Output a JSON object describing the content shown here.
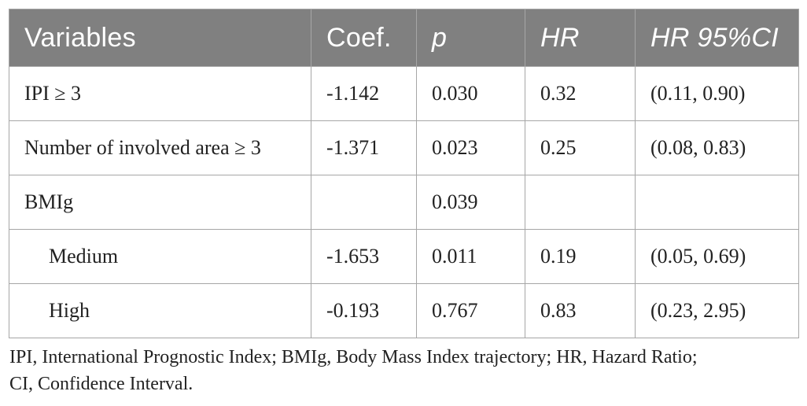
{
  "table": {
    "headers": [
      "Variables",
      "Coef.",
      "p",
      "HR",
      "HR 95%CI"
    ],
    "rows": [
      {
        "variable": "IPI ≥ 3",
        "coef": "-1.142",
        "p": "0.030",
        "hr": "0.32",
        "ci": "(0.11, 0.90)",
        "indent": false
      },
      {
        "variable": "Number of involved area ≥ 3",
        "coef": "-1.371",
        "p": "0.023",
        "hr": "0.25",
        "ci": "(0.08, 0.83)",
        "indent": false
      },
      {
        "variable": "BMIg",
        "coef": "",
        "p": "0.039",
        "hr": "",
        "ci": "",
        "indent": false
      },
      {
        "variable": "Medium",
        "coef": "-1.653",
        "p": "0.011",
        "hr": "0.19",
        "ci": "(0.05, 0.69)",
        "indent": true
      },
      {
        "variable": "High",
        "coef": "-0.193",
        "p": "0.767",
        "hr": "0.83",
        "ci": "(0.23, 2.95)",
        "indent": true
      }
    ]
  },
  "footnote": {
    "line1": "IPI, International Prognostic Index; BMIg, Body Mass Index trajectory; HR, Hazard Ratio;",
    "line2": "CI, Confidence Interval."
  },
  "colors": {
    "header_bg": "#808080",
    "header_text": "#ffffff",
    "border": "#a6a6a6",
    "body_text": "#222222"
  }
}
